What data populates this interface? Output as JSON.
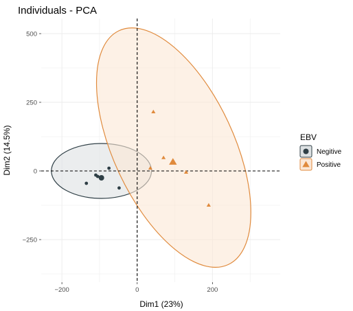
{
  "chart_data": {
    "type": "scatter",
    "title": "Individuals - PCA",
    "xlabel": "Dim1 (23%)",
    "ylabel": "Dim2 (14.5%)",
    "xlim": [
      -255,
      380
    ],
    "ylim": [
      -405,
      555
    ],
    "x_ticks": [
      -200,
      0,
      200
    ],
    "x_tick_labels": [
      "−200",
      "0",
      "200"
    ],
    "y_ticks": [
      500,
      250,
      0,
      -250
    ],
    "y_tick_labels": [
      "500",
      "250",
      "0",
      "−250"
    ],
    "grid": true,
    "legend": {
      "title": "EBV",
      "placement": "right"
    },
    "series": [
      {
        "name": "Negitive",
        "color": "#2f3f46",
        "fill": "#dde1e3",
        "shape": "circle",
        "points": [
          {
            "x": -135,
            "y": -45
          },
          {
            "x": -110,
            "y": -15
          },
          {
            "x": -105,
            "y": -20
          },
          {
            "x": -75,
            "y": 10
          },
          {
            "x": -48,
            "y": -62
          }
        ],
        "centroid": {
          "x": -95,
          "y": -25
        },
        "ellipse": {
          "cx": -95,
          "cy": 0,
          "rx": 133,
          "ry": 100,
          "angle": 0
        }
      },
      {
        "name": "Positive",
        "color": "#e08a3c",
        "fill": "#fbe7d6",
        "shape": "triangle",
        "points": [
          {
            "x": 43,
            "y": 215
          },
          {
            "x": 70,
            "y": 48
          },
          {
            "x": 35,
            "y": 10
          },
          {
            "x": 130,
            "y": -5
          },
          {
            "x": 190,
            "y": -125
          }
        ],
        "centroid": {
          "x": 95,
          "y": 32
        },
        "ellipse": {
          "cx": 97,
          "cy": 85,
          "rx": 160,
          "ry": 470,
          "angle": -25
        }
      }
    ]
  }
}
